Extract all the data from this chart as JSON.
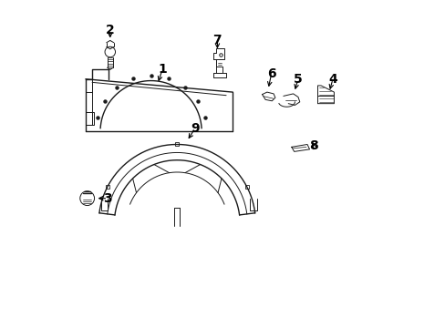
{
  "bg_color": "#ffffff",
  "line_color": "#1a1a1a",
  "label_color": "#000000",
  "label_fontsize": 10,
  "arrow_color": "#000000",
  "figsize": [
    4.89,
    3.6
  ],
  "dpi": 100
}
